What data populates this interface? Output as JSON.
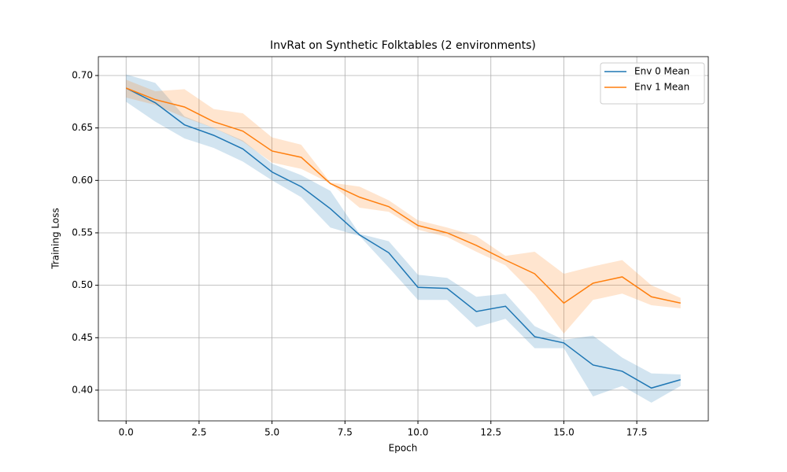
{
  "chart_data": {
    "type": "line",
    "title": "InvRat on Synthetic Folktables (2 environments)",
    "x_label": "Epoch",
    "y_label": "Training Loss",
    "x": [
      0,
      1,
      2,
      3,
      4,
      5,
      6,
      7,
      8,
      9,
      10,
      11,
      12,
      13,
      14,
      15,
      16,
      17,
      18,
      19
    ],
    "series": [
      {
        "name": "Env 0 Mean",
        "color": "#1f77b4",
        "values": [
          0.688,
          0.674,
          0.653,
          0.643,
          0.63,
          0.608,
          0.594,
          0.573,
          0.548,
          0.531,
          0.498,
          0.497,
          0.475,
          0.48,
          0.451,
          0.445,
          0.424,
          0.418,
          0.402,
          0.41
        ],
        "lower": [
          0.675,
          0.656,
          0.64,
          0.631,
          0.618,
          0.6,
          0.584,
          0.555,
          0.547,
          0.517,
          0.486,
          0.486,
          0.46,
          0.468,
          0.44,
          0.44,
          0.394,
          0.404,
          0.388,
          0.404
        ],
        "upper": [
          0.701,
          0.693,
          0.661,
          0.65,
          0.638,
          0.616,
          0.605,
          0.59,
          0.549,
          0.542,
          0.51,
          0.507,
          0.489,
          0.492,
          0.461,
          0.448,
          0.452,
          0.431,
          0.416,
          0.415
        ]
      },
      {
        "name": "Env 1 Mean",
        "color": "#ff7f0e",
        "values": [
          0.688,
          0.677,
          0.67,
          0.656,
          0.647,
          0.628,
          0.622,
          0.597,
          0.584,
          0.575,
          0.557,
          0.55,
          0.538,
          0.524,
          0.511,
          0.483,
          0.502,
          0.508,
          0.489,
          0.483
        ],
        "lower": [
          0.679,
          0.672,
          0.66,
          0.65,
          0.637,
          0.617,
          0.611,
          0.597,
          0.574,
          0.57,
          0.553,
          0.546,
          0.532,
          0.519,
          0.491,
          0.454,
          0.486,
          0.492,
          0.481,
          0.478
        ],
        "upper": [
          0.696,
          0.685,
          0.687,
          0.668,
          0.664,
          0.641,
          0.634,
          0.598,
          0.594,
          0.581,
          0.562,
          0.555,
          0.547,
          0.528,
          0.532,
          0.511,
          0.518,
          0.524,
          0.5,
          0.488
        ]
      }
    ],
    "xlim": [
      -0.95,
      19.95
    ],
    "xticks": [
      {
        "value": 0,
        "label": "0.0"
      },
      {
        "value": 2.5,
        "label": "2.5"
      },
      {
        "value": 5,
        "label": "5.0"
      },
      {
        "value": 7.5,
        "label": "7.5"
      },
      {
        "value": 10,
        "label": "10.0"
      },
      {
        "value": 12.5,
        "label": "12.5"
      },
      {
        "value": 15,
        "label": "15.0"
      },
      {
        "value": 17.5,
        "label": "17.5"
      }
    ],
    "ylim": [
      0.3707,
      0.718
    ],
    "yticks": [
      {
        "value": 0.4,
        "label": "0.40"
      },
      {
        "value": 0.45,
        "label": "0.45"
      },
      {
        "value": 0.5,
        "label": "0.50"
      },
      {
        "value": 0.55,
        "label": "0.55"
      },
      {
        "value": 0.6,
        "label": "0.60"
      },
      {
        "value": 0.65,
        "label": "0.65"
      },
      {
        "value": 0.7,
        "label": "0.70"
      }
    ],
    "grid": true,
    "legend": "upper-right",
    "band_opacity": 0.2
  }
}
